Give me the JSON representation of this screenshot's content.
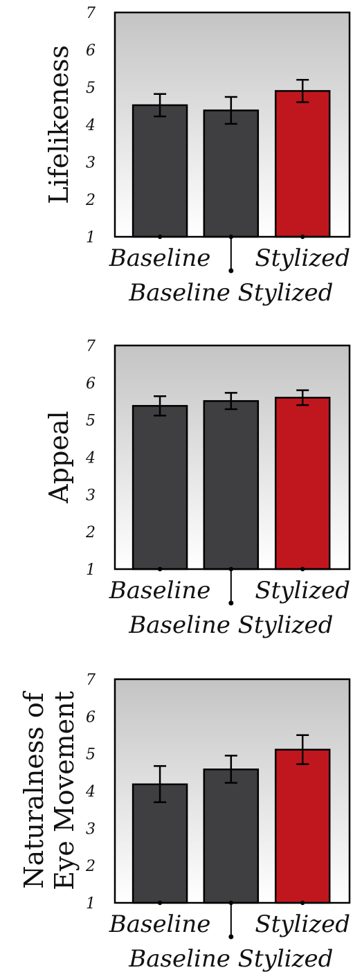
{
  "chart_data": [
    {
      "type": "bar",
      "ylabel": [
        "Lifelikeness"
      ],
      "ylim": [
        1,
        7
      ],
      "yticks": [
        "1",
        "2",
        "3",
        "4",
        "5",
        "6",
        "7"
      ],
      "category_labels": {
        "left": "Baseline",
        "right": "Stylized",
        "bottom": "Baseline Stylized"
      },
      "values": [
        4.52,
        4.38,
        4.9
      ],
      "errors": [
        [
          4.22,
          4.82
        ],
        [
          4.02,
          4.74
        ],
        [
          4.6,
          5.2
        ]
      ],
      "colors": [
        "#3f3f41",
        "#3f3f41",
        "#c0171e"
      ],
      "grid": false
    },
    {
      "type": "bar",
      "ylabel": [
        "Appeal"
      ],
      "ylim": [
        1,
        7
      ],
      "yticks": [
        "1",
        "2",
        "3",
        "4",
        "5",
        "6",
        "7"
      ],
      "category_labels": {
        "left": "Baseline",
        "right": "Stylized",
        "bottom": "Baseline Stylized"
      },
      "values": [
        5.38,
        5.51,
        5.6
      ],
      "errors": [
        [
          5.12,
          5.64
        ],
        [
          5.29,
          5.73
        ],
        [
          5.4,
          5.8
        ]
      ],
      "colors": [
        "#3f3f41",
        "#3f3f41",
        "#c0171e"
      ],
      "grid": false
    },
    {
      "type": "bar",
      "ylabel": [
        "Naturalness of",
        "Eye Movement"
      ],
      "ylim": [
        1,
        7
      ],
      "yticks": [
        "1",
        "2",
        "3",
        "4",
        "5",
        "6",
        "7"
      ],
      "category_labels": {
        "left": "Baseline",
        "right": "Stylized",
        "bottom": "Baseline Stylized"
      },
      "values": [
        4.18,
        4.58,
        5.11
      ],
      "errors": [
        [
          3.7,
          4.67
        ],
        [
          4.22,
          4.95
        ],
        [
          4.72,
          5.5
        ]
      ],
      "colors": [
        "#3f3f41",
        "#3f3f41",
        "#c0171e"
      ],
      "grid": false
    }
  ]
}
